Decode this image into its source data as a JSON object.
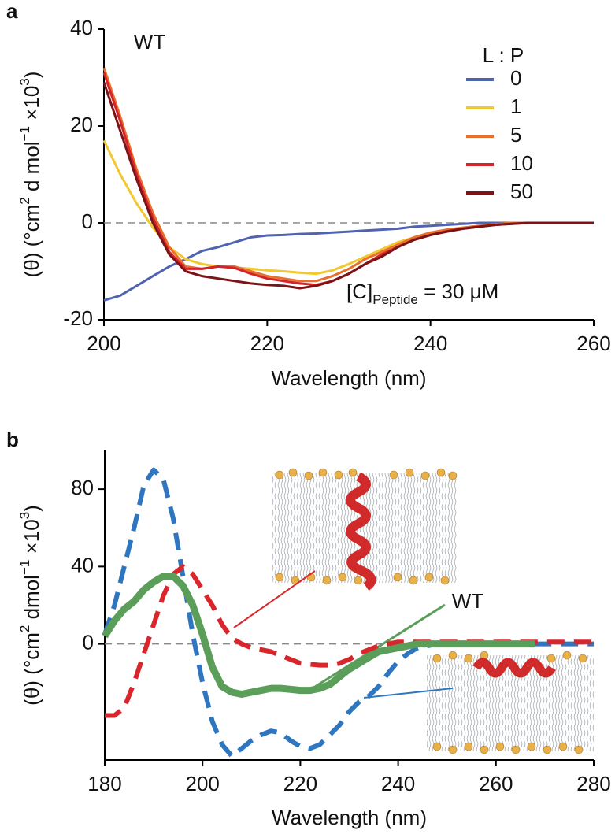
{
  "chart_data": [
    {
      "type": "line",
      "panel_label": "a",
      "annotation_top": "WT",
      "annotation": [
        "[C]",
        "Peptide",
        " = 30 μM"
      ],
      "xlabel": "Wavelength (nm)",
      "ylabel": [
        "(θ) (°cm",
        "2",
        " d mol",
        "−1",
        " ×10",
        "3",
        ")"
      ],
      "legend_title": "L : P",
      "legend": "upper right",
      "hline": 0,
      "xlim": [
        200,
        260
      ],
      "xticks": [
        200,
        220,
        240,
        260
      ],
      "ylim": [
        -20,
        40
      ],
      "yticks": [
        -20,
        0,
        20,
        40
      ],
      "x": [
        200,
        202,
        204,
        206,
        208,
        210,
        212,
        214,
        216,
        218,
        220,
        222,
        224,
        226,
        228,
        230,
        232,
        234,
        236,
        238,
        240,
        242,
        244,
        246,
        248,
        250,
        252,
        254,
        256,
        258,
        260
      ],
      "series": [
        {
          "name": "0",
          "color": "#4f63b1",
          "values": [
            -16,
            -15,
            -13,
            -11,
            -9,
            -7.5,
            -5.8,
            -5,
            -4,
            -3,
            -2.6,
            -2.5,
            -2.3,
            -2.2,
            -2,
            -1.8,
            -1.6,
            -1.4,
            -1.2,
            -0.8,
            -0.6,
            -0.4,
            -0.2,
            0,
            0,
            0,
            0,
            0,
            0,
            0,
            0
          ]
        },
        {
          "name": "1",
          "color": "#f2c832",
          "values": [
            17,
            10,
            4,
            -1,
            -5,
            -7.5,
            -8.5,
            -9,
            -9.2,
            -9.5,
            -9.8,
            -10,
            -10.3,
            -10.5,
            -9.8,
            -8.5,
            -7,
            -5.5,
            -4,
            -3,
            -2,
            -1.5,
            -1,
            -0.6,
            -0.3,
            0,
            0,
            0,
            0,
            0,
            0
          ]
        },
        {
          "name": "5",
          "color": "#e86f2c",
          "values": [
            32,
            22,
            11,
            2,
            -5,
            -9,
            -9.5,
            -9,
            -9,
            -10,
            -11,
            -11.5,
            -12,
            -12,
            -11,
            -9.5,
            -7.5,
            -6,
            -4.5,
            -3,
            -2,
            -1.4,
            -1,
            -0.6,
            -0.3,
            0,
            0,
            0,
            0,
            0,
            0
          ]
        },
        {
          "name": "10",
          "color": "#d4242a",
          "values": [
            31,
            21,
            10,
            1,
            -6,
            -9.5,
            -9.5,
            -9,
            -9.3,
            -10.5,
            -11.5,
            -12,
            -12.5,
            -12.8,
            -12,
            -10.5,
            -8.5,
            -6.5,
            -5,
            -3.5,
            -2.5,
            -1.7,
            -1.2,
            -0.8,
            -0.4,
            -0.2,
            0,
            0,
            0,
            0,
            0
          ]
        },
        {
          "name": "50",
          "color": "#7a1416",
          "values": [
            29,
            19,
            9,
            0,
            -6.5,
            -10,
            -11,
            -11.5,
            -12,
            -12.5,
            -12.8,
            -13,
            -13.5,
            -13,
            -12,
            -10.5,
            -8.5,
            -7,
            -5,
            -3.5,
            -2.5,
            -1.8,
            -1.2,
            -0.8,
            -0.4,
            -0.2,
            0,
            0,
            0,
            0,
            0
          ]
        }
      ]
    },
    {
      "type": "line",
      "panel_label": "b",
      "xlabel": "Wavelength (nm)",
      "ylabel": [
        "(θ) (°cm",
        "2",
        " dmol",
        "−1",
        " ×10",
        "3",
        ")"
      ],
      "hline": 0,
      "xlim": [
        180,
        280
      ],
      "xticks": [
        180,
        200,
        220,
        240,
        260,
        280
      ],
      "ylim": [
        -60,
        100
      ],
      "yticks": [
        0,
        40,
        80
      ],
      "x": [
        180,
        182,
        184,
        186,
        188,
        190,
        192,
        194,
        196,
        198,
        200,
        202,
        204,
        206,
        208,
        210,
        212,
        214,
        216,
        218,
        220,
        222,
        224,
        226,
        228,
        230,
        232,
        234,
        236,
        238,
        240,
        242,
        244,
        246,
        248,
        250,
        252,
        254,
        256,
        258,
        260,
        262,
        264,
        266,
        268,
        270,
        272,
        274,
        276,
        278,
        280
      ],
      "series": [
        {
          "color": "#2f76c0",
          "dashed": true,
          "values": [
            5,
            20,
            40,
            60,
            82,
            90,
            85,
            65,
            35,
            5,
            -20,
            -40,
            -52,
            -58,
            -54,
            -50,
            -47,
            -45,
            -46,
            -50,
            -53,
            -54,
            -52,
            -47,
            -42,
            -35,
            -30,
            -27,
            -22,
            -15,
            -9,
            -5,
            -2,
            -1,
            0,
            0,
            0,
            0,
            0,
            0,
            0,
            0,
            0,
            0,
            0,
            0,
            0,
            0,
            0,
            0,
            0
          ]
        },
        {
          "color": "#d9262c",
          "dashed": true,
          "values": [
            -37,
            -37,
            -33,
            -20,
            -5,
            10,
            25,
            36,
            40,
            36,
            28,
            20,
            10,
            3,
            0,
            -2,
            -3,
            -4,
            -6,
            -8,
            -10,
            -10.5,
            -11,
            -11,
            -10,
            -8,
            -5,
            -3,
            -1,
            0,
            1,
            1,
            1,
            1,
            1,
            1,
            1,
            1,
            1,
            1,
            1,
            1,
            1,
            1,
            1,
            1,
            1,
            1,
            1,
            1,
            1
          ]
        },
        {
          "name": "WT",
          "color": "#5a9e5a",
          "values": [
            4,
            12,
            18,
            22,
            28,
            32,
            35,
            35,
            30,
            20,
            5,
            -12,
            -22,
            -25,
            -26,
            -25,
            -24,
            -23,
            -23,
            -23.5,
            -24,
            -24,
            -23,
            -21,
            -17,
            -13,
            -10,
            -7,
            -4,
            -3,
            -2,
            -1,
            0,
            0,
            0,
            0,
            0,
            0,
            0,
            0,
            0,
            0,
            0,
            0,
            0,
            null,
            null,
            null,
            null,
            null,
            null
          ]
        }
      ]
    }
  ]
}
